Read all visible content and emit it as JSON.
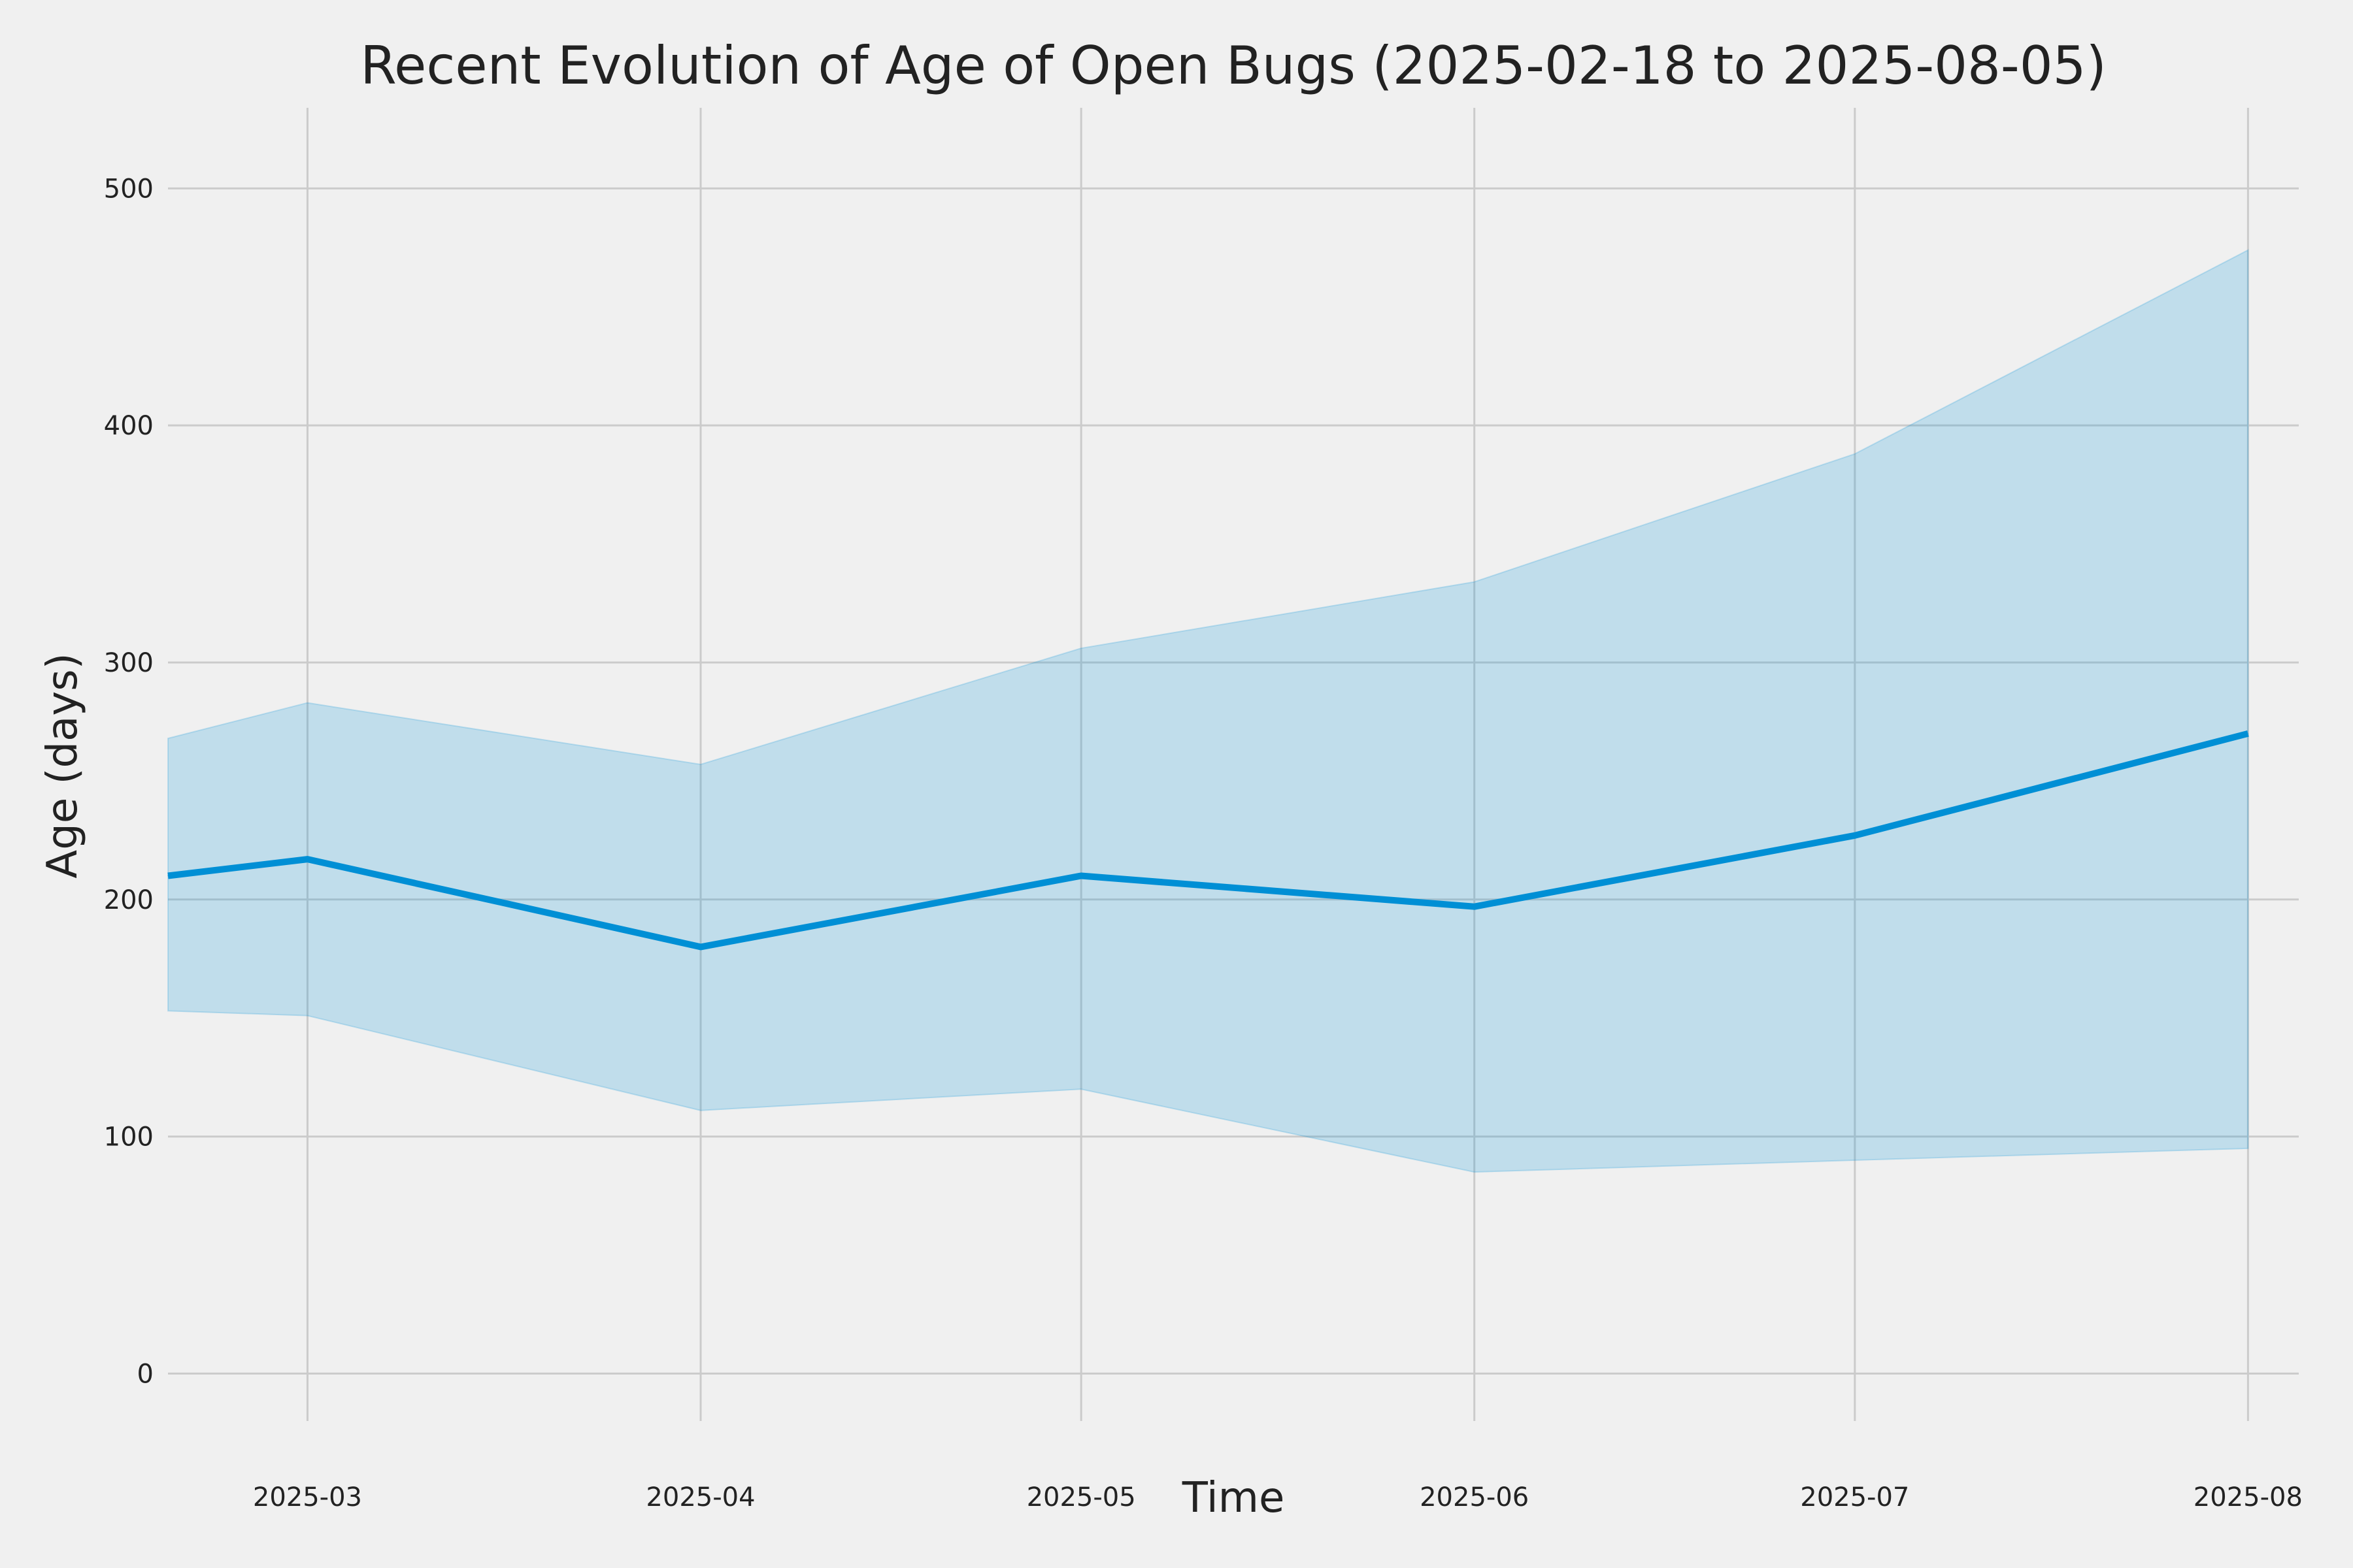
{
  "chart_data": {
    "type": "line",
    "title": "Recent Evolution of Age of Open Bugs (2025-02-18 to 2025-08-05)",
    "xlabel": "Time",
    "ylabel": "Age (days)",
    "xlim": [
      "2025-02-18",
      "2025-08-05"
    ],
    "ylim": [
      -20,
      534
    ],
    "x_ticks": [
      "2025-03",
      "2025-04",
      "2025-05",
      "2025-06",
      "2025-07",
      "2025-08"
    ],
    "y_ticks": [
      0,
      100,
      200,
      300,
      400,
      500
    ],
    "grid": true,
    "x": [
      "2025-02-18",
      "2025-03-01",
      "2025-04-01",
      "2025-05-01",
      "2025-06-01",
      "2025-07-01",
      "2025-08-01"
    ],
    "series": [
      {
        "values": [
          210,
          217,
          180,
          210,
          197,
          227,
          270
        ],
        "lower": [
          153,
          151,
          111,
          120,
          85,
          90,
          95
        ],
        "upper": [
          268,
          283,
          257,
          306,
          334,
          388,
          474
        ]
      }
    ],
    "colors": {
      "line": "#008fd5",
      "band": "#008fd5",
      "background": "#f0f0f0",
      "grid": "#cbcbcb",
      "text": "#222222"
    }
  }
}
